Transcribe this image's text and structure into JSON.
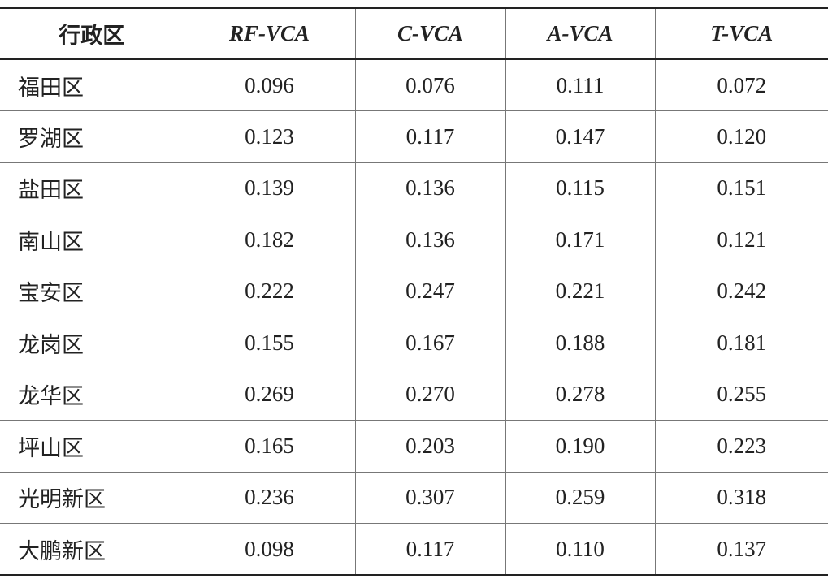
{
  "table": {
    "header": [
      "行政区",
      "RF-VCA",
      "C-VCA",
      "A-VCA",
      "T-VCA"
    ],
    "rows": [
      [
        "福田区",
        "0.096",
        "0.076",
        "0.111",
        "0.072"
      ],
      [
        "罗湖区",
        "0.123",
        "0.117",
        "0.147",
        "0.120"
      ],
      [
        "盐田区",
        "0.139",
        "0.136",
        "0.115",
        "0.151"
      ],
      [
        "南山区",
        "0.182",
        "0.136",
        "0.171",
        "0.121"
      ],
      [
        "宝安区",
        "0.222",
        "0.247",
        "0.221",
        "0.242"
      ],
      [
        "龙岗区",
        "0.155",
        "0.167",
        "0.188",
        "0.181"
      ],
      [
        "龙华区",
        "0.269",
        "0.270",
        "0.278",
        "0.255"
      ],
      [
        "坪山区",
        "0.165",
        "0.203",
        "0.190",
        "0.223"
      ],
      [
        "光明新区",
        "0.236",
        "0.307",
        "0.259",
        "0.318"
      ],
      [
        "大鹏新区",
        "0.098",
        "0.117",
        "0.110",
        "0.137"
      ]
    ]
  }
}
